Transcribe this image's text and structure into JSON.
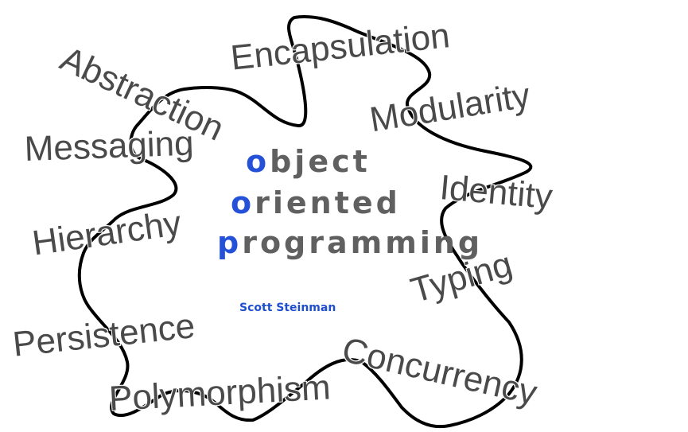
{
  "title": {
    "lines": [
      {
        "initial": "o",
        "rest": "bject"
      },
      {
        "initial": "o",
        "rest": "riented"
      },
      {
        "initial": "p",
        "rest": "rogramming"
      }
    ]
  },
  "author": "Scott Steinman",
  "concepts": [
    "Abstraction",
    "Encapsulation",
    "Modularity",
    "Messaging",
    "Identity",
    "Hierarchy",
    "Typing",
    "Persistence",
    "Concurrency",
    "Polymorphism"
  ],
  "colors": {
    "accent": "#2451d8",
    "title_text": "#606060",
    "concept_text": "#4a4a4a",
    "outline": "#000000"
  }
}
